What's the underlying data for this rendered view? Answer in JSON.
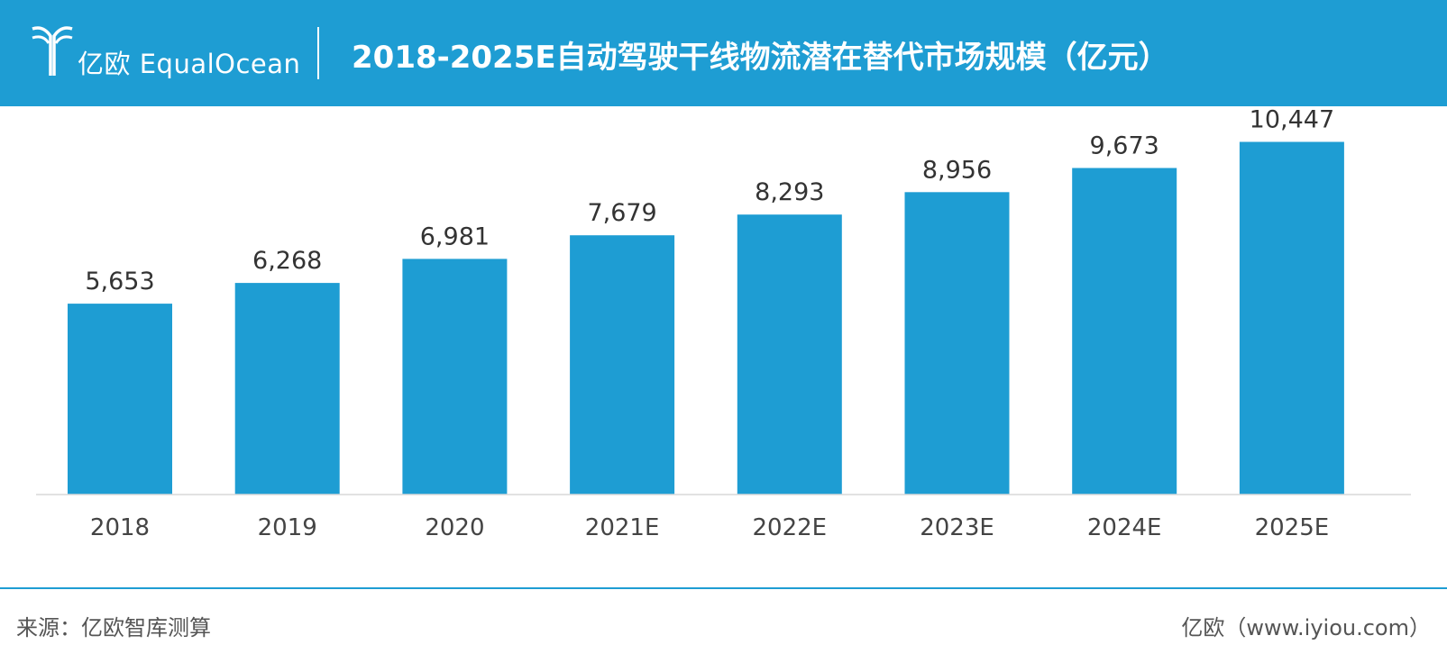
{
  "header": {
    "logo_text": "亿欧 EqualOcean",
    "title": "2018-2025E自动驾驶干线物流潜在替代市场规模（亿元）"
  },
  "footer": {
    "source": "来源：亿欧智库测算",
    "website": "亿欧（www.iyiou.com）"
  },
  "colors": {
    "accent": "#1e9dd3",
    "text": "#333333"
  },
  "chart_data": {
    "type": "bar",
    "title": "2018-2025E自动驾驶干线物流潜在替代市场规模（亿元）",
    "categories": [
      "2018",
      "2019",
      "2020",
      "2021E",
      "2022E",
      "2023E",
      "2024E",
      "2025E"
    ],
    "values": [
      5653,
      6268,
      6981,
      7679,
      8293,
      8956,
      9673,
      10447
    ],
    "value_labels": [
      "5,653",
      "6,268",
      "6,981",
      "7,679",
      "8,293",
      "8,956",
      "9,673",
      "10,447"
    ],
    "xlabel": "",
    "ylabel": "",
    "ylim": [
      0,
      11500
    ],
    "grid": false,
    "legend": "none"
  }
}
